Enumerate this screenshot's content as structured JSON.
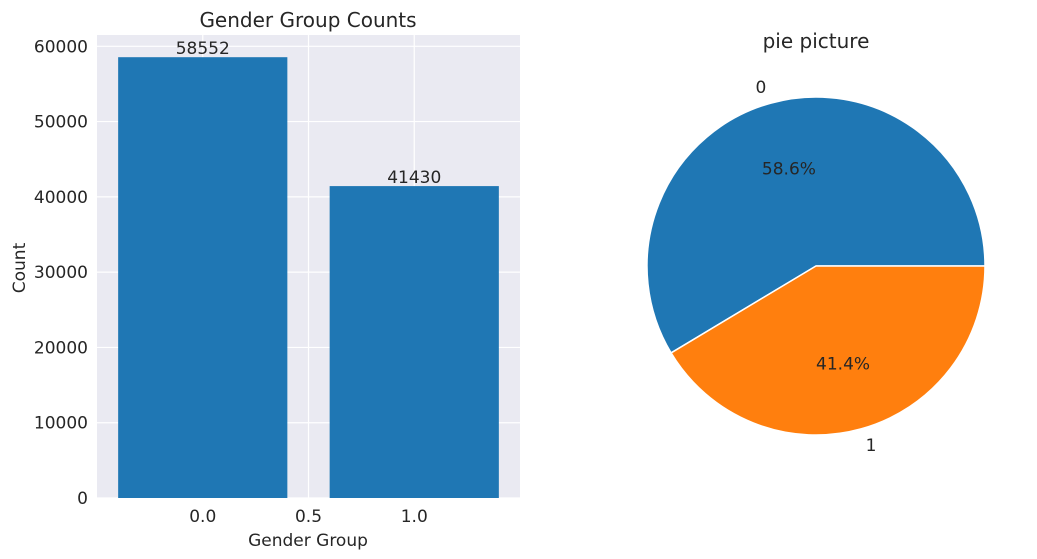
{
  "chart_data": [
    {
      "type": "bar",
      "title": "Gender Group Counts",
      "xlabel": "Gender Group",
      "ylabel": "Count",
      "x": [
        0.0,
        1.0
      ],
      "values": [
        58552,
        41430
      ],
      "data_labels": [
        "58552",
        "41430"
      ],
      "xlim": [
        -0.5,
        1.5
      ],
      "ylim": [
        0,
        61500
      ],
      "xticks": [
        0.0,
        0.5,
        1.0
      ],
      "xtick_labels": [
        "0.0",
        "0.5",
        "1.0"
      ],
      "yticks": [
        0,
        10000,
        20000,
        30000,
        40000,
        50000,
        60000
      ],
      "ytick_labels": [
        "0",
        "10000",
        "20000",
        "30000",
        "40000",
        "50000",
        "60000"
      ],
      "bar_color": "#1f77b4",
      "grid": true,
      "background": "#eaeaf2"
    },
    {
      "type": "pie",
      "title": "pie picture",
      "labels": [
        "0",
        "1"
      ],
      "values": [
        58.6,
        41.4
      ],
      "autopct_labels": [
        "58.6%",
        "41.4%"
      ],
      "colors": [
        "#1f77b4",
        "#ff7f0e"
      ]
    }
  ]
}
